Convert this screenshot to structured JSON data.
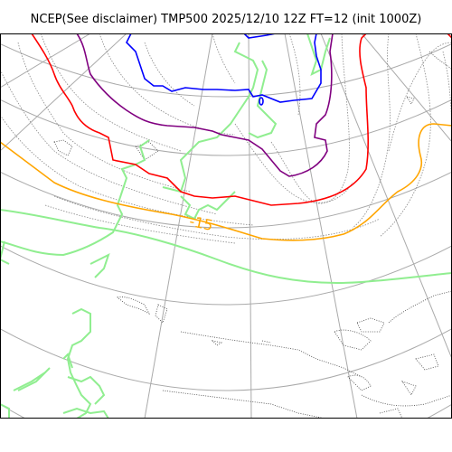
{
  "title": "NCEP(See disclaimer) TMP500 2025/12/10 12Z FT=12 (init 1000Z)",
  "map": {
    "projection": "polar-stereographic",
    "frame_border": true
  },
  "contour_labels": [
    {
      "text": "-15",
      "color": "#ffa500"
    }
  ],
  "styles": {
    "graticule_color": "#aaaaaa",
    "coastline_color": "#444444",
    "background_color": "#ffffff",
    "isotherm_colors": {
      "blue": "#0000ff",
      "purple": "#800080",
      "red": "#ff0000",
      "orange": "#ffa500",
      "lightgreen": "#90ee90"
    },
    "isotherm_minor_color": "#888888"
  }
}
